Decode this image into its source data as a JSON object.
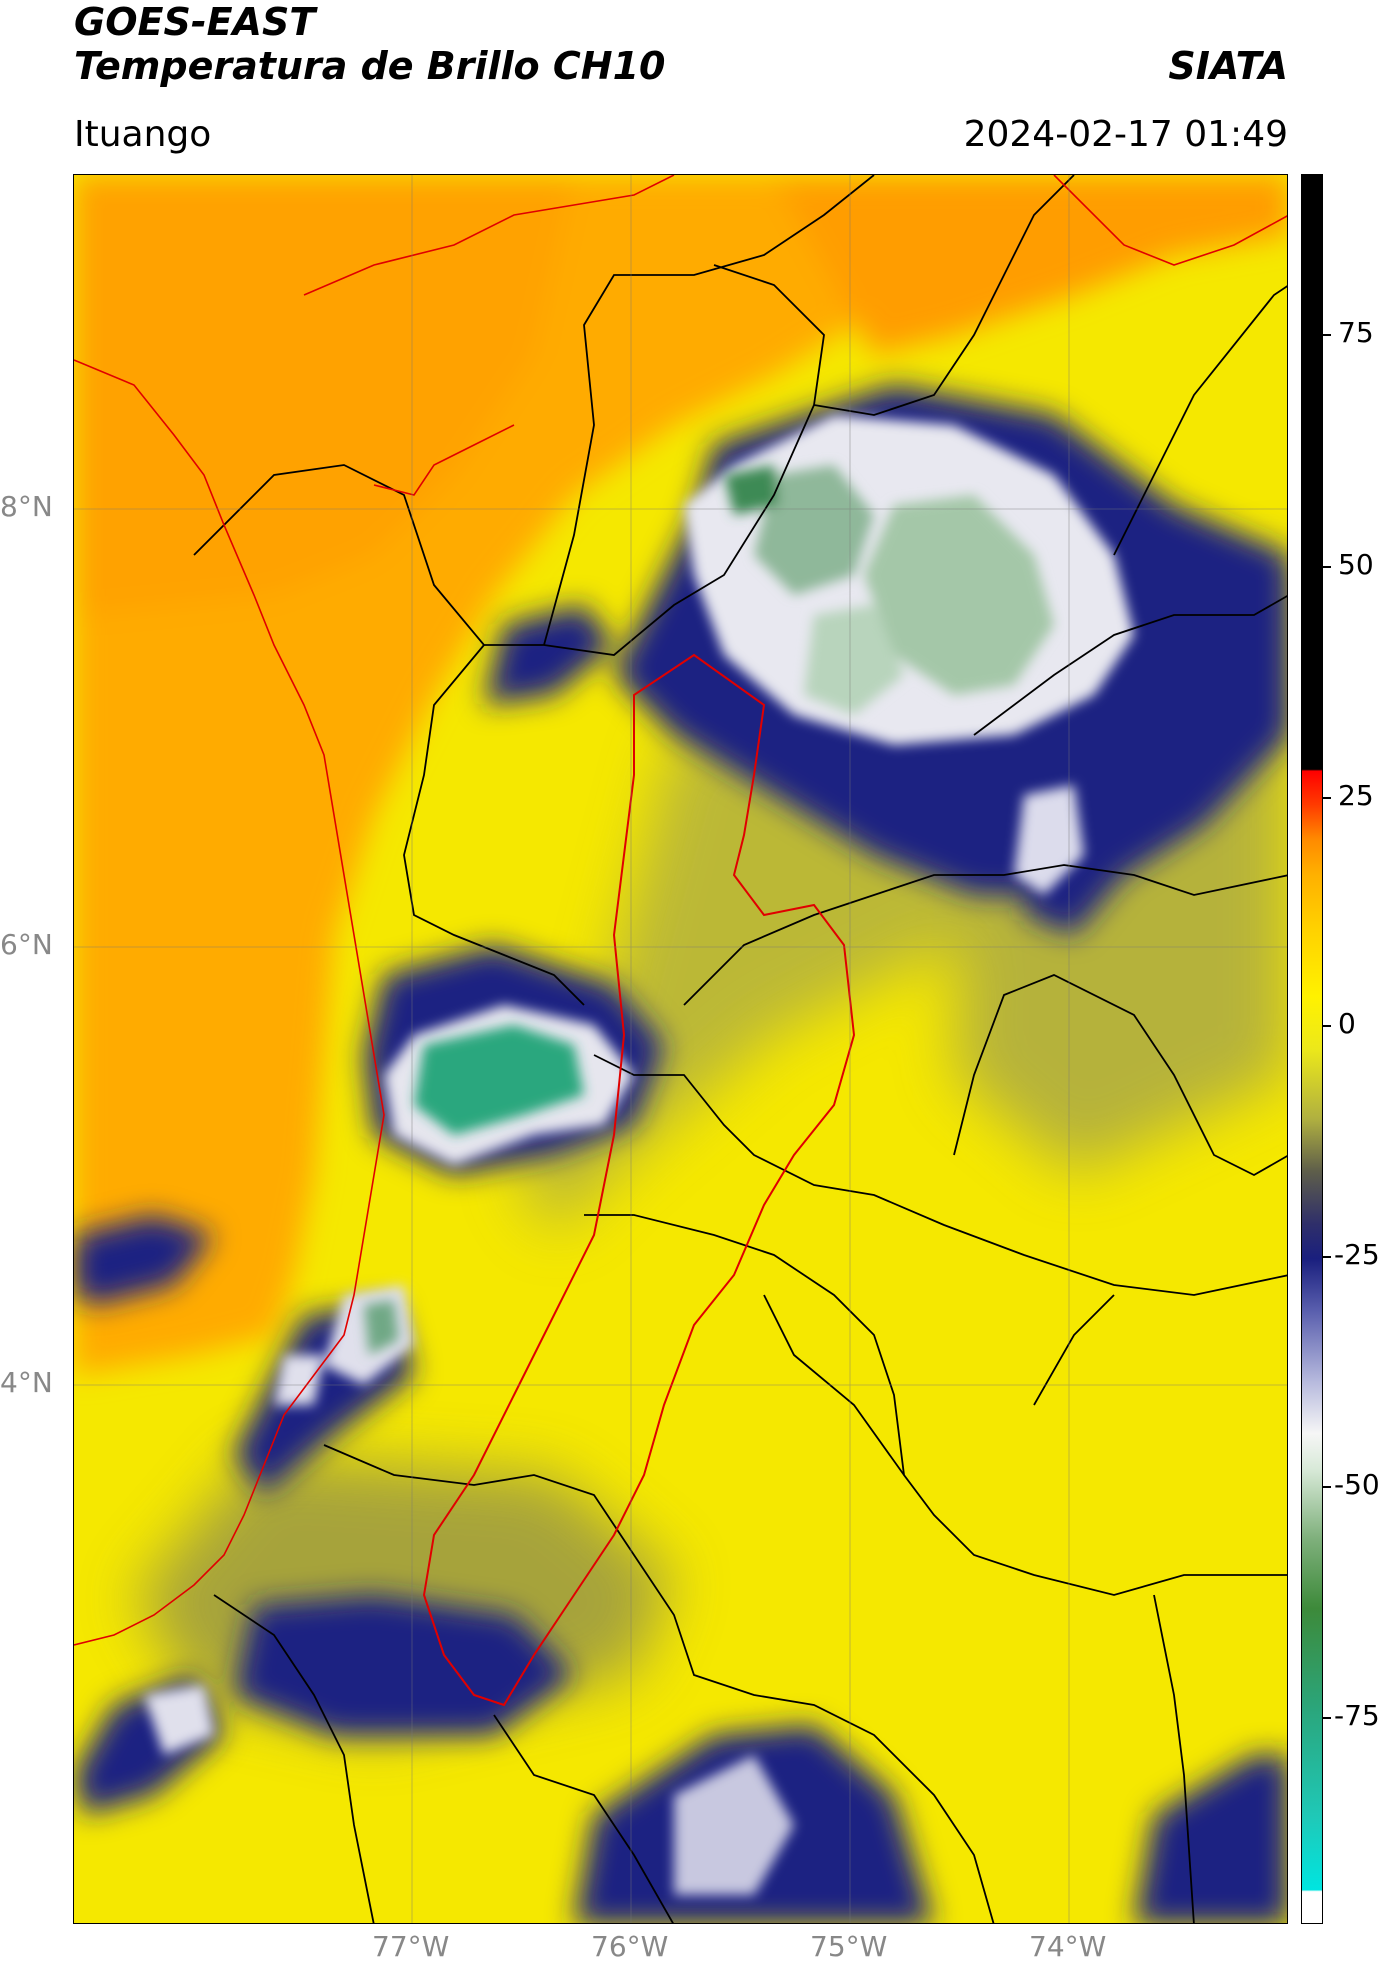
{
  "header": {
    "satellite": "GOES-EAST",
    "product": "Temperatura de Brillo CH10",
    "agency": "SIATA",
    "region": "Ituango",
    "datetime": "2024-02-17 01:49"
  },
  "axes": {
    "lat_labels": [
      "8°N",
      "6°N",
      "4°N"
    ],
    "lon_labels": [
      "77°W",
      "76°W",
      "75°W",
      "74°W"
    ]
  },
  "colorbar": {
    "tick_labels": [
      "75",
      "50",
      "25",
      "0",
      "-25",
      "-50",
      "-75"
    ],
    "range": [
      -95,
      90
    ],
    "colors": [
      "#ffffff",
      "#00e5e0",
      "#2aa77e",
      "#f6f6f6",
      "#1a1f7e",
      "#fff200",
      "#ff8a00",
      "#ff0000",
      "#000000"
    ]
  },
  "map": {
    "background_color": "#f5e800",
    "sea_color": "#ffab00",
    "border_colors": {
      "department": "#000000",
      "study_basin": "#ff0000"
    }
  }
}
